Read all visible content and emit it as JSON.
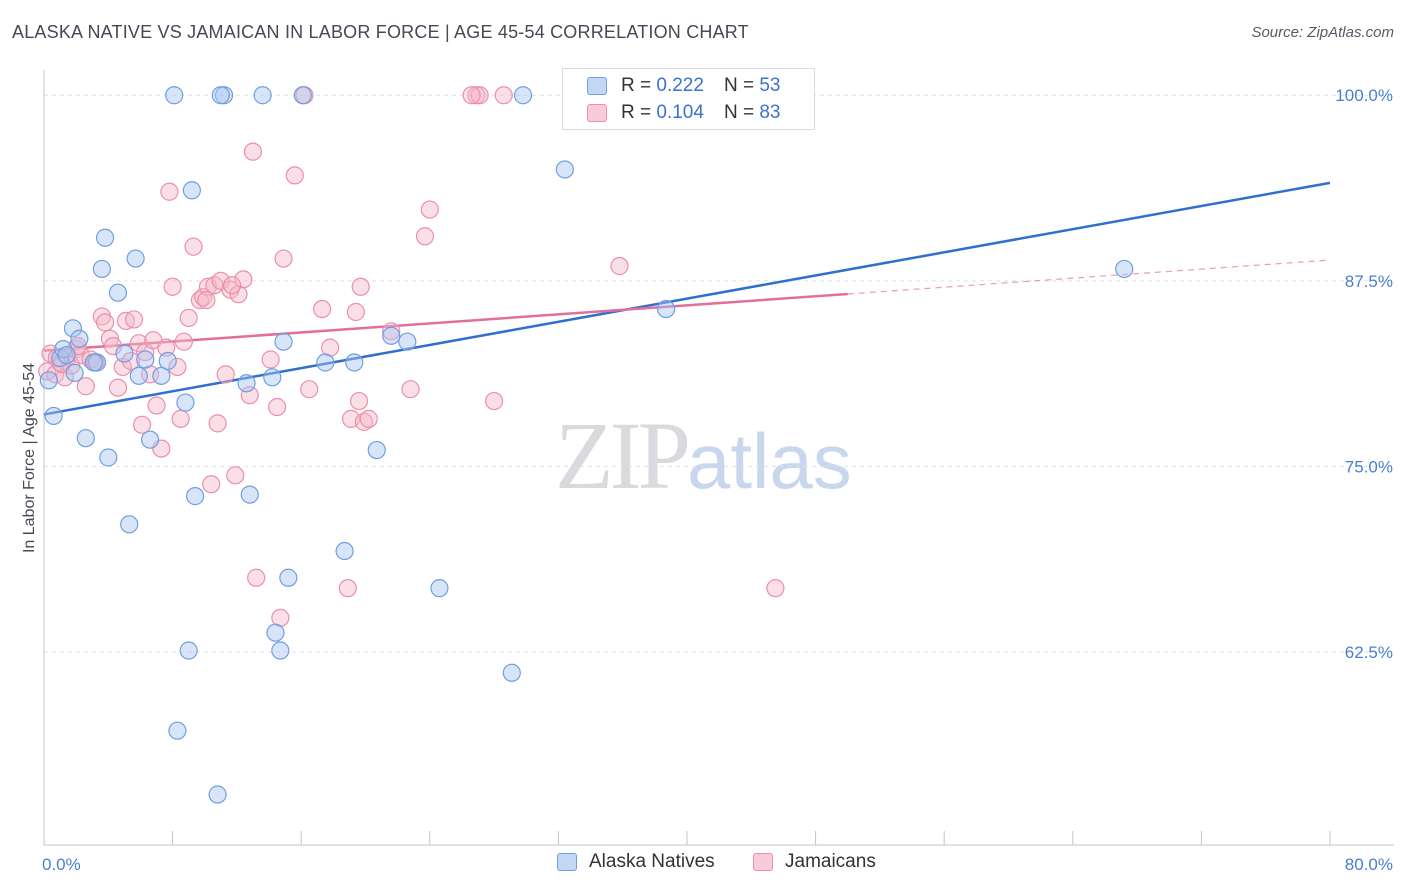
{
  "header": {
    "title": "ALASKA NATIVE VS JAMAICAN IN LABOR FORCE | AGE 45-54 CORRELATION CHART",
    "source": "Source: ZipAtlas.com"
  },
  "watermark": {
    "zip": "ZIP",
    "atlas": "atlas"
  },
  "legend": {
    "rows": [
      {
        "r_label": "R = ",
        "r_value": "0.222",
        "n_label": "N = ",
        "n_value": "53"
      },
      {
        "r_label": "R = ",
        "r_value": "0.104",
        "n_label": "N = ",
        "n_value": "83"
      }
    ]
  },
  "bottom_legend": {
    "series1": "Alaska Natives",
    "series2": "Jamaicans"
  },
  "colors": {
    "blue_fill": "#a9c6ef",
    "blue_stroke": "#6f9fe0",
    "blue_line": "#2f6fce",
    "pink_fill": "#f5b8ca",
    "pink_stroke": "#ec8faa",
    "pink_line": "#e0709a",
    "grid": "#dde1e6",
    "axis": "#c0c4ca",
    "tick_text": "#4a7fd0"
  },
  "chart_data": {
    "type": "scatter",
    "title": "ALASKA NATIVE VS JAMAICAN IN LABOR FORCE | AGE 45-54 CORRELATION CHART",
    "xlabel": "",
    "ylabel": "In Labor Force | Age 45-54",
    "xlim": [
      0,
      80
    ],
    "ylim": [
      49.5,
      101.7
    ],
    "x_tick_labels": [
      "0.0%",
      "80.0%"
    ],
    "y_ticks": [
      62.5,
      75.0,
      87.5,
      100.0
    ],
    "y_tick_labels": [
      "62.5%",
      "75.0%",
      "87.5%",
      "100.0%"
    ],
    "grid": true,
    "legend_position": "top-center",
    "series": [
      {
        "name": "Alaska Natives",
        "R": 0.222,
        "N": 53,
        "trend": {
          "x": [
            0,
            80
          ],
          "y": [
            78.5,
            94.1
          ],
          "dashed_from": null
        },
        "points": [
          [
            0.3,
            80.8
          ],
          [
            0.6,
            78.4
          ],
          [
            1.0,
            82.3
          ],
          [
            1.2,
            82.9
          ],
          [
            1.8,
            84.3
          ],
          [
            1.9,
            81.3
          ],
          [
            2.2,
            83.6
          ],
          [
            2.6,
            76.9
          ],
          [
            3.3,
            82.0
          ],
          [
            3.6,
            88.3
          ],
          [
            3.8,
            90.4
          ],
          [
            4.0,
            75.6
          ],
          [
            4.6,
            86.7
          ],
          [
            5.0,
            82.6
          ],
          [
            5.3,
            71.1
          ],
          [
            5.7,
            89.0
          ],
          [
            5.9,
            81.1
          ],
          [
            6.3,
            82.2
          ],
          [
            6.6,
            76.8
          ],
          [
            7.3,
            81.1
          ],
          [
            7.7,
            82.1
          ],
          [
            8.1,
            100.0
          ],
          [
            8.3,
            57.2
          ],
          [
            8.8,
            79.3
          ],
          [
            9.0,
            62.6
          ],
          [
            9.2,
            93.6
          ],
          [
            9.4,
            73.0
          ],
          [
            10.8,
            52.9
          ],
          [
            11.2,
            100.0
          ],
          [
            12.8,
            73.1
          ],
          [
            12.6,
            80.6
          ],
          [
            13.6,
            100.0
          ],
          [
            14.2,
            81.0
          ],
          [
            14.4,
            63.8
          ],
          [
            14.7,
            62.6
          ],
          [
            14.9,
            83.4
          ],
          [
            15.2,
            67.5
          ],
          [
            16.1,
            100.0
          ],
          [
            17.5,
            82.0
          ],
          [
            18.7,
            69.3
          ],
          [
            19.3,
            82.0
          ],
          [
            20.7,
            76.1
          ],
          [
            21.6,
            83.8
          ],
          [
            22.6,
            83.4
          ],
          [
            24.6,
            66.8
          ],
          [
            29.1,
            61.1
          ],
          [
            29.8,
            100.0
          ],
          [
            32.4,
            95.0
          ],
          [
            38.7,
            85.6
          ],
          [
            67.2,
            88.3
          ],
          [
            1.4,
            82.5
          ],
          [
            3.1,
            82.0
          ],
          [
            11.0,
            100.0
          ]
        ]
      },
      {
        "name": "Jamaicans",
        "R": 0.104,
        "N": 83,
        "trend": {
          "x": [
            0,
            80
          ],
          "y": [
            82.8,
            88.9
          ],
          "dashed_from": 50
        },
        "points": [
          [
            0.2,
            81.4
          ],
          [
            0.4,
            82.6
          ],
          [
            0.7,
            81.2
          ],
          [
            1.0,
            82.0
          ],
          [
            1.3,
            81.0
          ],
          [
            1.5,
            82.4
          ],
          [
            1.7,
            81.8
          ],
          [
            2.0,
            82.9
          ],
          [
            2.3,
            82.5
          ],
          [
            2.6,
            80.4
          ],
          [
            2.9,
            82.2
          ],
          [
            3.2,
            82.0
          ],
          [
            3.6,
            85.1
          ],
          [
            3.8,
            84.7
          ],
          [
            4.1,
            83.6
          ],
          [
            4.3,
            83.1
          ],
          [
            4.6,
            80.3
          ],
          [
            4.9,
            81.7
          ],
          [
            5.1,
            84.8
          ],
          [
            5.4,
            82.1
          ],
          [
            5.6,
            84.9
          ],
          [
            5.9,
            83.3
          ],
          [
            6.1,
            77.8
          ],
          [
            6.3,
            82.7
          ],
          [
            6.6,
            81.2
          ],
          [
            6.8,
            83.5
          ],
          [
            7.0,
            79.1
          ],
          [
            7.3,
            76.2
          ],
          [
            7.6,
            83.0
          ],
          [
            7.8,
            93.5
          ],
          [
            8.0,
            87.1
          ],
          [
            8.3,
            81.7
          ],
          [
            8.5,
            78.2
          ],
          [
            8.7,
            83.4
          ],
          [
            9.0,
            85.0
          ],
          [
            9.3,
            89.8
          ],
          [
            9.7,
            86.2
          ],
          [
            9.9,
            86.4
          ],
          [
            10.2,
            87.1
          ],
          [
            10.4,
            73.8
          ],
          [
            10.6,
            87.2
          ],
          [
            10.8,
            77.9
          ],
          [
            11.0,
            87.5
          ],
          [
            11.3,
            81.2
          ],
          [
            11.6,
            86.9
          ],
          [
            11.9,
            74.4
          ],
          [
            12.1,
            86.6
          ],
          [
            12.4,
            87.6
          ],
          [
            12.8,
            79.8
          ],
          [
            13.0,
            96.2
          ],
          [
            13.2,
            67.5
          ],
          [
            14.1,
            82.2
          ],
          [
            14.5,
            79.0
          ],
          [
            14.7,
            64.8
          ],
          [
            14.9,
            89.0
          ],
          [
            15.6,
            94.6
          ],
          [
            16.2,
            100.0
          ],
          [
            16.5,
            80.2
          ],
          [
            17.3,
            85.6
          ],
          [
            17.8,
            83.0
          ],
          [
            18.9,
            66.8
          ],
          [
            19.1,
            78.2
          ],
          [
            19.4,
            85.4
          ],
          [
            19.6,
            79.4
          ],
          [
            19.9,
            78.0
          ],
          [
            20.2,
            78.2
          ],
          [
            21.6,
            84.1
          ],
          [
            22.8,
            80.2
          ],
          [
            23.7,
            90.5
          ],
          [
            24.0,
            92.3
          ],
          [
            26.9,
            100.0
          ],
          [
            27.1,
            100.0
          ],
          [
            26.6,
            100.0
          ],
          [
            28.0,
            79.4
          ],
          [
            28.6,
            100.0
          ],
          [
            35.8,
            88.5
          ],
          [
            45.5,
            66.8
          ],
          [
            0.8,
            82.3
          ],
          [
            1.1,
            81.9
          ],
          [
            2.1,
            83.1
          ],
          [
            11.7,
            87.2
          ],
          [
            19.7,
            87.1
          ],
          [
            10.1,
            86.2
          ]
        ]
      }
    ]
  }
}
